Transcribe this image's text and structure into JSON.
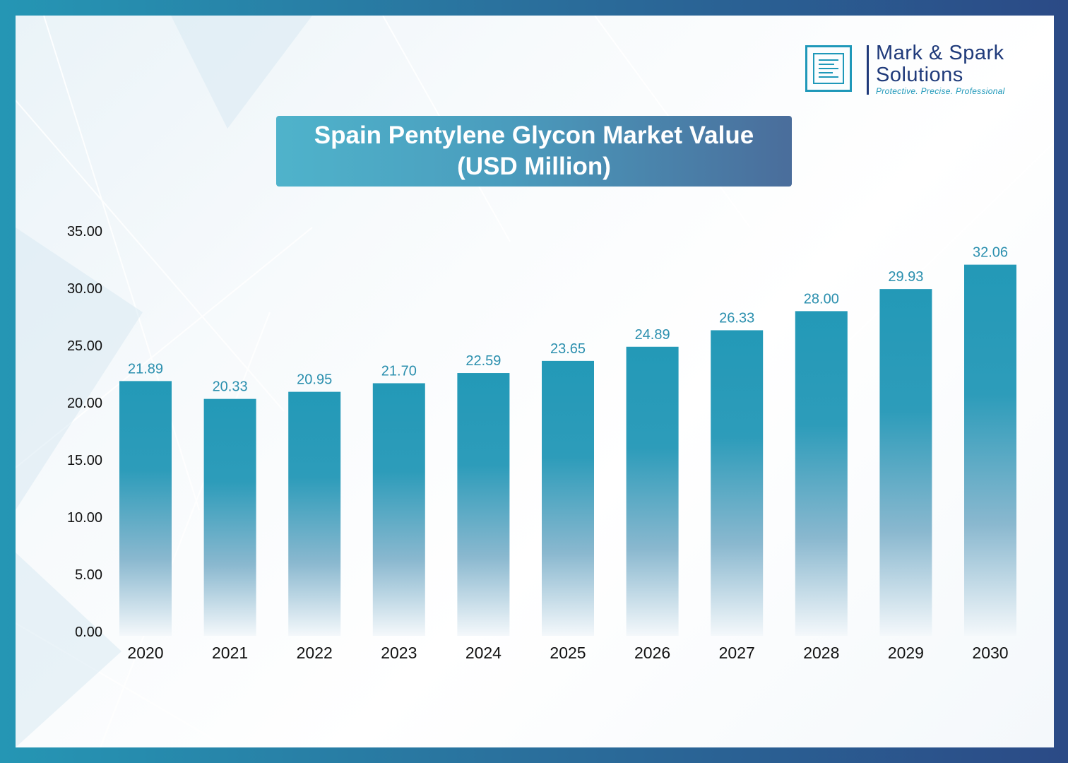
{
  "brand": {
    "name_line1": "Mark & Spark",
    "name_line2": "Solutions",
    "tagline": "Protective. Precise. Professional",
    "logo_icon": "document-lines-icon"
  },
  "colors": {
    "frame_left": "#2596b4",
    "frame_right": "#2b4a86",
    "bar_top": "#2399b7",
    "value_label": "#2a8fae"
  },
  "chart_data": {
    "type": "bar",
    "title_line1": "Spain Pentylene Glycon Market Value",
    "title_line2": "(USD Million)",
    "categories": [
      "2020",
      "2021",
      "2022",
      "2023",
      "2024",
      "2025",
      "2026",
      "2027",
      "2028",
      "2029",
      "2030"
    ],
    "values": [
      21.89,
      20.33,
      20.95,
      21.7,
      22.59,
      23.65,
      24.89,
      26.33,
      28.0,
      29.93,
      32.06
    ],
    "value_labels": [
      "21.89",
      "20.33",
      "20.95",
      "21.70",
      "22.59",
      "23.65",
      "24.89",
      "26.33",
      "28.00",
      "29.93",
      "32.06"
    ],
    "y_ticks": [
      "0.00",
      "5.00",
      "10.00",
      "15.00",
      "20.00",
      "25.00",
      "30.00",
      "35.00"
    ],
    "ylim": [
      0,
      35
    ],
    "xlabel": "",
    "ylabel": "",
    "grid": false,
    "legend": "none"
  }
}
